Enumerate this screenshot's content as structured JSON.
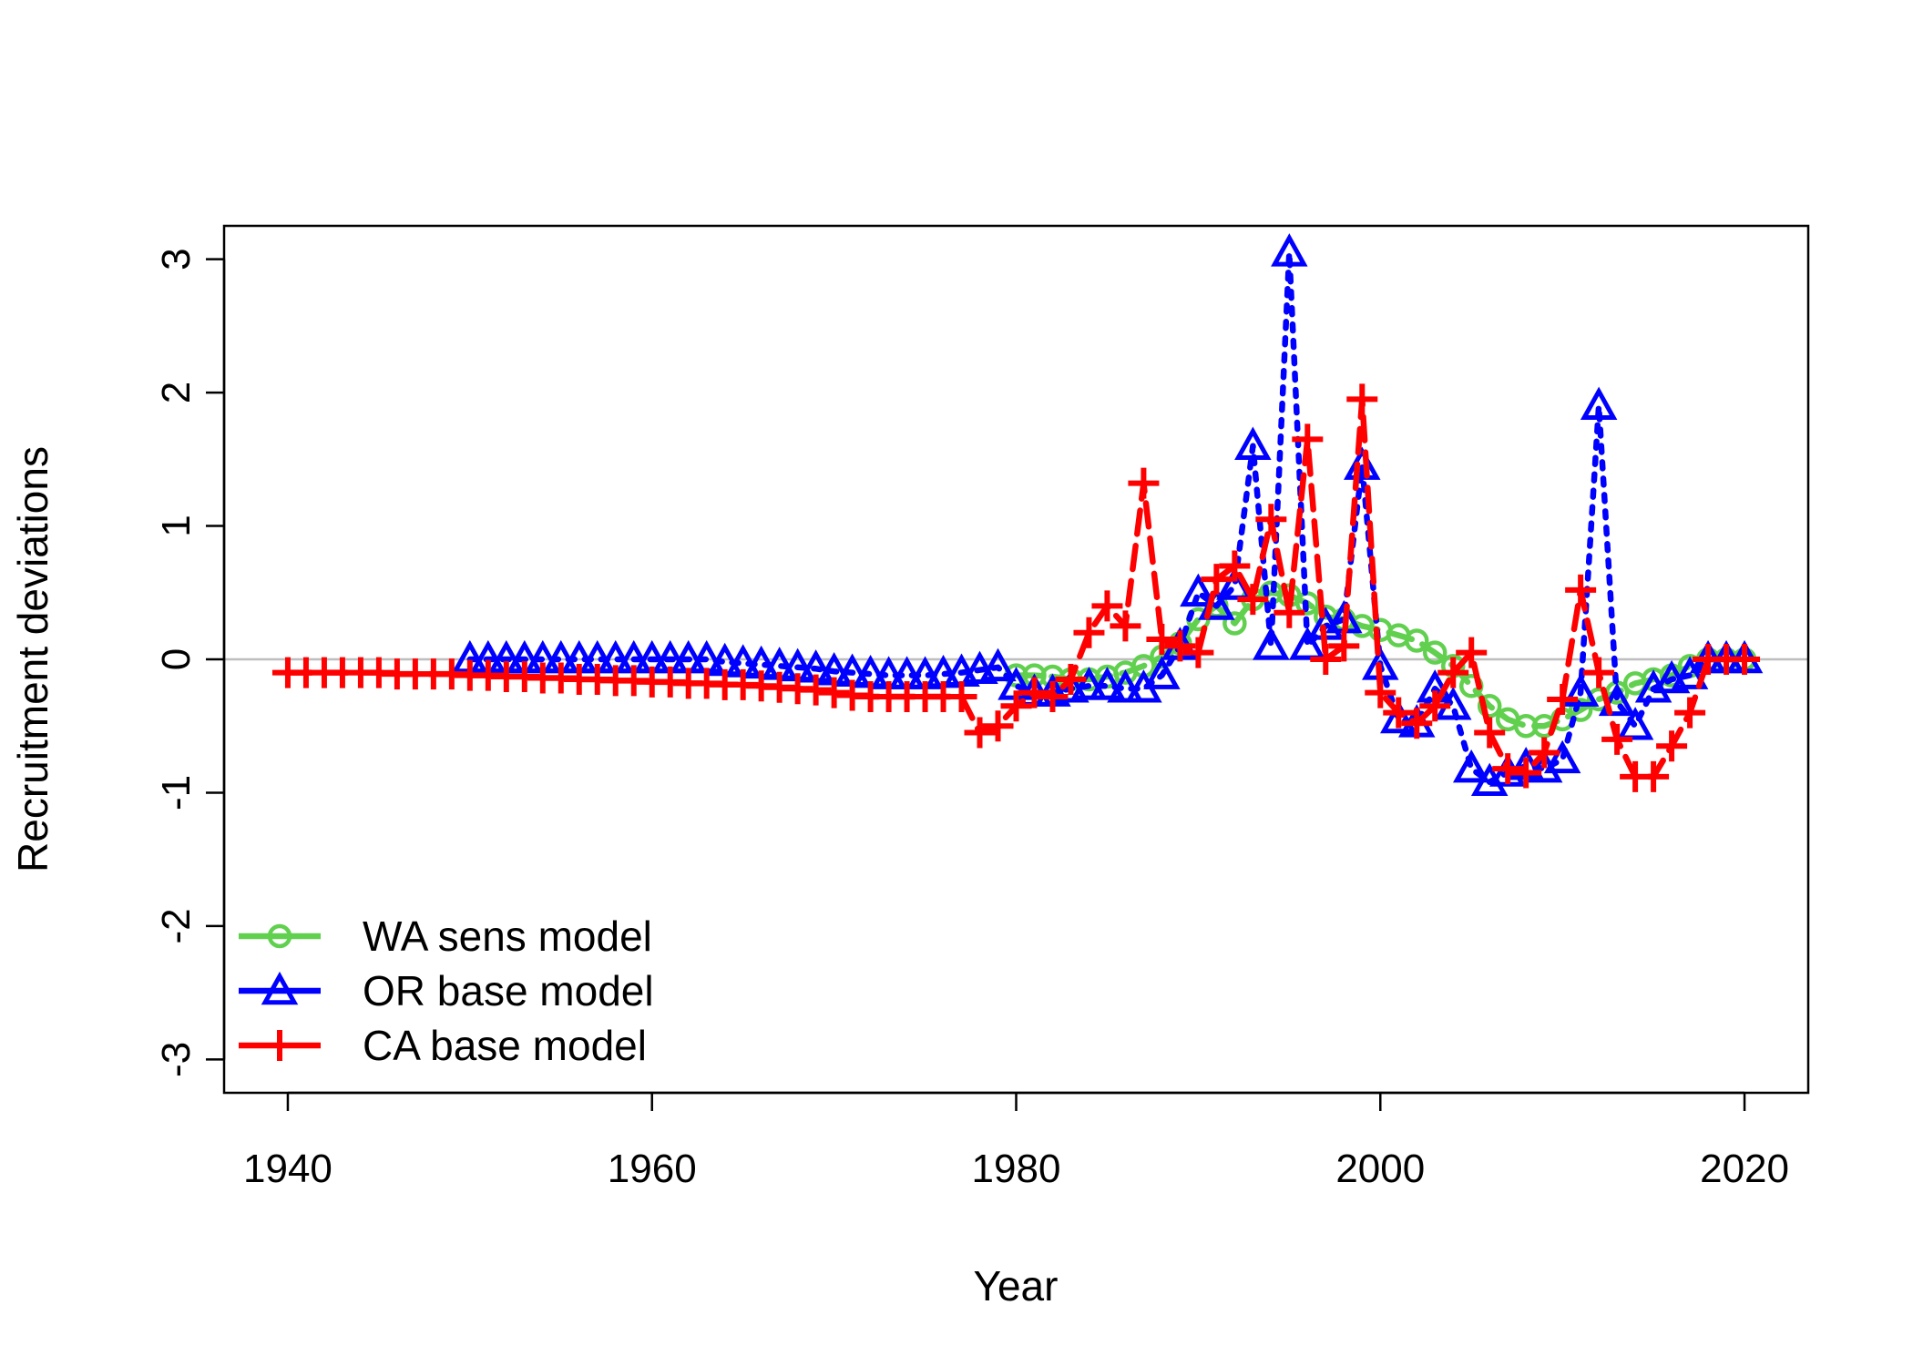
{
  "chart_data": {
    "type": "line",
    "title": "",
    "xlabel": "Year",
    "ylabel": "Recruitment deviations",
    "xlim": [
      1936.5,
      2023.5
    ],
    "ylim": [
      -3.25,
      3.25
    ],
    "x_ticks": [
      1940,
      1960,
      1980,
      2000,
      2020
    ],
    "y_ticks": [
      -3,
      -2,
      -1,
      0,
      1,
      2,
      3
    ],
    "reference_line": 0,
    "reference_color": "#bebebe",
    "legend_position": "bottom-left",
    "grid": false,
    "series": [
      {
        "name": "WA sens model",
        "color": "#61D04F",
        "marker": "circle",
        "line": "dashed",
        "x": [
          1980,
          1981,
          1982,
          1983,
          1984,
          1985,
          1986,
          1987,
          1988,
          1989,
          1990,
          1991,
          1992,
          1993,
          1994,
          1995,
          1996,
          1997,
          1998,
          1999,
          2000,
          2001,
          2002,
          2003,
          2004,
          2005,
          2006,
          2007,
          2008,
          2009,
          2010,
          2011,
          2012,
          2013,
          2014,
          2015,
          2016,
          2017,
          2018,
          2019,
          2020
        ],
        "y": [
          -0.12,
          -0.12,
          -0.13,
          -0.15,
          -0.15,
          -0.13,
          -0.1,
          -0.05,
          0.02,
          0.12,
          0.3,
          0.4,
          0.27,
          0.45,
          0.5,
          0.48,
          0.42,
          0.32,
          0.3,
          0.25,
          0.22,
          0.18,
          0.14,
          0.05,
          -0.05,
          -0.2,
          -0.35,
          -0.45,
          -0.5,
          -0.5,
          -0.45,
          -0.38,
          -0.3,
          -0.25,
          -0.18,
          -0.15,
          -0.12,
          -0.05,
          0.0,
          0.0,
          0.0
        ]
      },
      {
        "name": "OR base model",
        "color": "#0000FF",
        "marker": "triangle",
        "line": "dotted",
        "x": [
          1950,
          1951,
          1952,
          1953,
          1954,
          1955,
          1956,
          1957,
          1958,
          1959,
          1960,
          1961,
          1962,
          1963,
          1964,
          1965,
          1966,
          1967,
          1968,
          1969,
          1970,
          1971,
          1972,
          1973,
          1974,
          1975,
          1976,
          1977,
          1978,
          1979,
          1980,
          1981,
          1982,
          1983,
          1984,
          1985,
          1986,
          1987,
          1988,
          1989,
          1990,
          1991,
          1992,
          1993,
          1994,
          1995,
          1996,
          1997,
          1998,
          1999,
          2000,
          2001,
          2002,
          2003,
          2004,
          2005,
          2006,
          2007,
          2008,
          2009,
          2010,
          2011,
          2012,
          2013,
          2014,
          2015,
          2016,
          2017,
          2018,
          2019,
          2020
        ],
        "y": [
          0.0,
          0.0,
          0.0,
          0.0,
          0.0,
          0.0,
          0.0,
          0.0,
          0.0,
          0.0,
          0.0,
          0.0,
          0.0,
          0.0,
          -0.02,
          -0.03,
          -0.04,
          -0.05,
          -0.06,
          -0.07,
          -0.09,
          -0.1,
          -0.11,
          -0.12,
          -0.12,
          -0.12,
          -0.11,
          -0.1,
          -0.08,
          -0.06,
          -0.2,
          -0.25,
          -0.25,
          -0.22,
          -0.2,
          -0.2,
          -0.22,
          -0.22,
          -0.12,
          0.1,
          0.5,
          0.4,
          0.55,
          1.6,
          0.1,
          3.05,
          0.1,
          0.25,
          0.3,
          1.45,
          -0.05,
          -0.45,
          -0.48,
          -0.22,
          -0.35,
          -0.82,
          -0.92,
          -0.85,
          -0.8,
          -0.82,
          -0.75,
          -0.25,
          1.9,
          -0.32,
          -0.5,
          -0.22,
          -0.15,
          -0.12,
          0.0,
          0.0,
          0.0
        ]
      },
      {
        "name": "CA base model",
        "color": "#FF0000",
        "marker": "plus",
        "line": "dashed",
        "x": [
          1940,
          1941,
          1942,
          1943,
          1944,
          1945,
          1946,
          1947,
          1948,
          1949,
          1950,
          1951,
          1952,
          1953,
          1954,
          1955,
          1956,
          1957,
          1958,
          1959,
          1960,
          1961,
          1962,
          1963,
          1964,
          1965,
          1966,
          1967,
          1968,
          1969,
          1970,
          1971,
          1972,
          1973,
          1974,
          1975,
          1976,
          1977,
          1978,
          1979,
          1980,
          1981,
          1982,
          1983,
          1984,
          1985,
          1986,
          1987,
          1988,
          1989,
          1990,
          1991,
          1992,
          1993,
          1994,
          1995,
          1996,
          1997,
          1998,
          1999,
          2000,
          2001,
          2002,
          2003,
          2004,
          2005,
          2006,
          2007,
          2008,
          2009,
          2010,
          2011,
          2012,
          2013,
          2014,
          2015,
          2016,
          2017,
          2018,
          2019,
          2020
        ],
        "y": [
          -0.1,
          -0.1,
          -0.1,
          -0.1,
          -0.1,
          -0.1,
          -0.11,
          -0.11,
          -0.11,
          -0.11,
          -0.12,
          -0.12,
          -0.13,
          -0.13,
          -0.14,
          -0.14,
          -0.15,
          -0.15,
          -0.16,
          -0.16,
          -0.17,
          -0.17,
          -0.18,
          -0.18,
          -0.19,
          -0.19,
          -0.2,
          -0.21,
          -0.22,
          -0.23,
          -0.25,
          -0.27,
          -0.28,
          -0.28,
          -0.28,
          -0.28,
          -0.28,
          -0.28,
          -0.55,
          -0.5,
          -0.35,
          -0.25,
          -0.28,
          -0.15,
          0.2,
          0.4,
          0.25,
          1.32,
          0.15,
          0.1,
          0.05,
          0.6,
          0.7,
          0.45,
          1.05,
          0.35,
          1.65,
          0.0,
          0.1,
          1.95,
          -0.25,
          -0.4,
          -0.48,
          -0.35,
          -0.1,
          0.05,
          -0.55,
          -0.82,
          -0.85,
          -0.7,
          -0.3,
          0.52,
          -0.1,
          -0.6,
          -0.88,
          -0.88,
          -0.65,
          -0.4,
          0.0,
          0.0,
          0.0
        ]
      }
    ]
  }
}
